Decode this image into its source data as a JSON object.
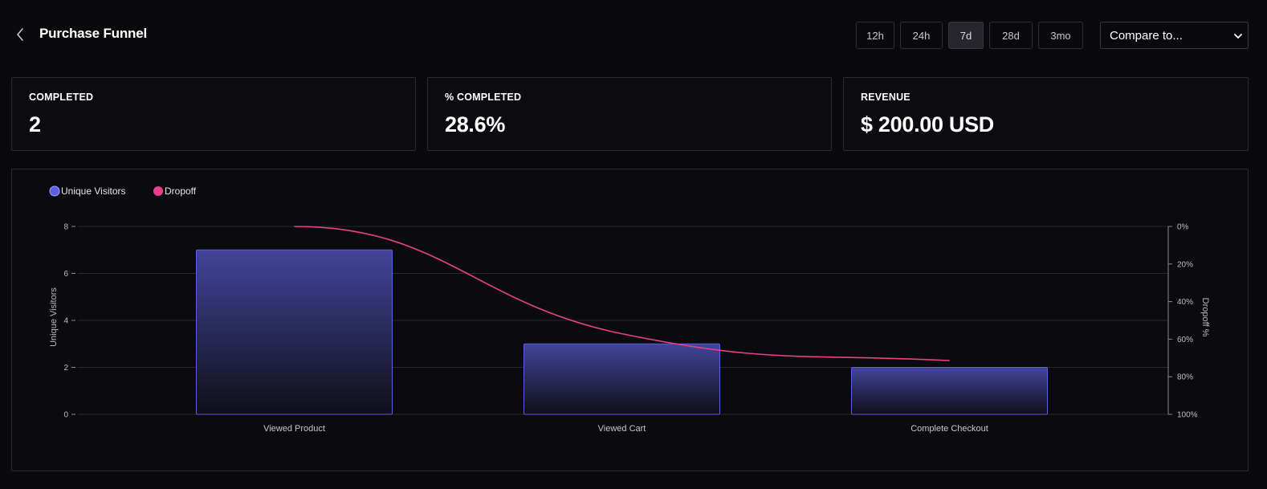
{
  "header": {
    "title": "Purchase Funnel",
    "ranges": [
      "12h",
      "24h",
      "7d",
      "28d",
      "3mo"
    ],
    "active_range": "7d",
    "compare_placeholder": "Compare to..."
  },
  "cards": [
    {
      "label": "COMPLETED",
      "value": "2"
    },
    {
      "label": "% COMPLETED",
      "value": "28.6%"
    },
    {
      "label": "REVENUE",
      "value": "$ 200.00 USD"
    }
  ],
  "colors": {
    "accent_bar": "#4a4fc4",
    "dropoff_line": "#e8408c"
  },
  "chart_data": {
    "type": "bar",
    "categories": [
      "Viewed Product",
      "Viewed Cart",
      "Complete Checkout"
    ],
    "series": [
      {
        "name": "Unique Visitors",
        "axis": "left",
        "kind": "bar",
        "values": [
          7,
          3,
          2
        ],
        "color": "#5b5fe0"
      },
      {
        "name": "Dropoff",
        "axis": "right",
        "kind": "line",
        "values": [
          0,
          57.1,
          71.4
        ],
        "color": "#e8408c"
      }
    ],
    "ylabel": "Unique Visitors",
    "ylabel_right": "Dropoff %",
    "ylim": [
      0,
      8
    ],
    "yticks": [
      0,
      2,
      4,
      6,
      8
    ],
    "ylim_right": [
      0,
      100
    ],
    "yticks_right": [
      "0%",
      "20%",
      "40%",
      "60%",
      "80%",
      "100%"
    ],
    "legend": [
      {
        "name": "Unique Visitors",
        "color": "#5b5fe0"
      },
      {
        "name": "Dropoff",
        "color": "#e8408c"
      }
    ],
    "grid": true,
    "legend_position": "top-left"
  }
}
